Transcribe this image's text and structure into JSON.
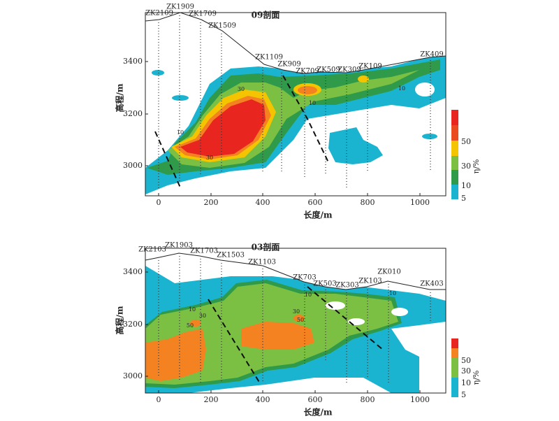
{
  "panels": [
    {
      "title": "09剖面",
      "y_label": "高程/m",
      "x_label": "长度/m",
      "x_ticks": [
        0,
        200,
        400,
        600,
        800,
        1000
      ],
      "y_ticks": [
        3000,
        3200,
        3400
      ],
      "boreholes": [
        "ZK2109",
        "ZK1909",
        "ZK1709",
        "ZK1509",
        "ZK1109",
        "ZK909",
        "ZK709",
        "ZK509",
        "ZK309",
        "ZK109",
        "ZK409"
      ],
      "contour_labels": [
        "10",
        "30",
        "30",
        "10",
        "10"
      ],
      "colorbar": {
        "label": "η/%",
        "ticks": [
          5,
          10,
          30,
          50
        ]
      }
    },
    {
      "title": "03剖面",
      "y_label": "高程/m",
      "x_label": "长度/m",
      "x_ticks": [
        0,
        200,
        400,
        600,
        800,
        1000
      ],
      "y_ticks": [
        3000,
        3200,
        3400
      ],
      "boreholes": [
        "ZK2103",
        "ZK1903",
        "ZK1703",
        "ZK1503",
        "ZK1103",
        "ZK703",
        "ZK503",
        "ZK303",
        "ZK103",
        "ZK010",
        "ZK403"
      ],
      "contour_labels": [
        "10",
        "30",
        "50",
        "30",
        "50",
        "10",
        "10"
      ],
      "colorbar": {
        "label": "η/%",
        "ticks": [
          5,
          10,
          30,
          50
        ]
      }
    }
  ]
}
